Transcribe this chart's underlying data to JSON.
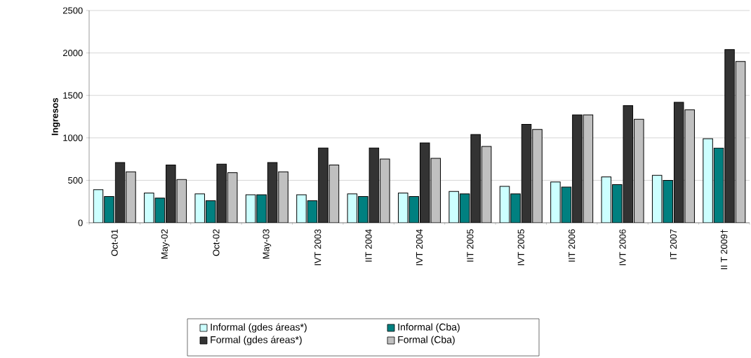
{
  "chart_data": {
    "type": "bar",
    "ylabel": "Ingresos",
    "categories": [
      "Oct-01",
      "May-02",
      "Oct-02",
      "May-03",
      "IVT 2003",
      "IIT 2004",
      "IVT 2004",
      "IIT 2005",
      "IVT 2005",
      "IIT 2006",
      "IVT 2006",
      "IT 2007",
      "II T 2009†"
    ],
    "series": [
      {
        "name": "Informal (gdes áreas*)",
        "color": "#ccffff",
        "values": [
          390,
          350,
          340,
          330,
          330,
          340,
          350,
          370,
          430,
          480,
          540,
          560,
          990
        ]
      },
      {
        "name": "Informal (Cba)",
        "color": "#008080",
        "values": [
          310,
          290,
          260,
          330,
          260,
          310,
          310,
          340,
          340,
          420,
          450,
          500,
          880
        ]
      },
      {
        "name": "Formal (gdes áreas*)",
        "color": "#333333",
        "values": [
          710,
          680,
          690,
          710,
          880,
          880,
          940,
          1040,
          1160,
          1270,
          1380,
          1420,
          2040
        ]
      },
      {
        "name": "Formal (Cba)",
        "color": "#c0c0c0",
        "values": [
          600,
          510,
          590,
          600,
          680,
          750,
          760,
          900,
          1100,
          1270,
          1220,
          1330,
          1900
        ]
      }
    ],
    "ylim": [
      0,
      2500
    ],
    "yticks": [
      0,
      500,
      1000,
      1500,
      2000,
      2500
    ],
    "grid": "y",
    "legend": "bottom"
  }
}
